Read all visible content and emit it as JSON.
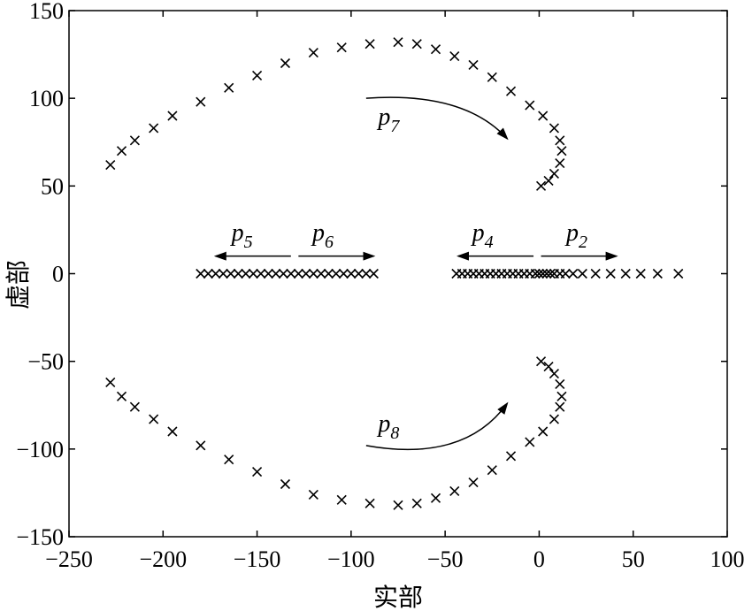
{
  "chart_data": {
    "type": "scatter",
    "title": "",
    "xlabel": "实部",
    "ylabel": "虚部",
    "xlim": [
      -250,
      100
    ],
    "ylim": [
      -150,
      150
    ],
    "xticks": [
      "−250",
      "−200",
      "−150",
      "−100",
      "−50",
      "0",
      "50",
      "100"
    ],
    "yticks": [
      "150",
      "100",
      "50",
      "0",
      "−50",
      "−100",
      "−150"
    ],
    "marker": "x",
    "series": [
      {
        "name": "p7",
        "points": [
          [
            -228,
            62
          ],
          [
            -222,
            70
          ],
          [
            -215,
            76
          ],
          [
            -205,
            83
          ],
          [
            -195,
            90
          ],
          [
            -180,
            98
          ],
          [
            -165,
            106
          ],
          [
            -150,
            113
          ],
          [
            -135,
            120
          ],
          [
            -120,
            126
          ],
          [
            -105,
            129
          ],
          [
            -90,
            131
          ],
          [
            -75,
            132
          ],
          [
            -65,
            131
          ],
          [
            -55,
            128
          ],
          [
            -45,
            124
          ],
          [
            -35,
            119
          ],
          [
            -25,
            112
          ],
          [
            -15,
            104
          ],
          [
            -5,
            96
          ],
          [
            2,
            90
          ],
          [
            8,
            83
          ],
          [
            11,
            76
          ],
          [
            12,
            70
          ],
          [
            11,
            63
          ],
          [
            8,
            57
          ],
          [
            5,
            53
          ],
          [
            1,
            50
          ]
        ]
      },
      {
        "name": "p8",
        "points": [
          [
            -228,
            -62
          ],
          [
            -222,
            -70
          ],
          [
            -215,
            -76
          ],
          [
            -205,
            -83
          ],
          [
            -195,
            -90
          ],
          [
            -180,
            -98
          ],
          [
            -165,
            -106
          ],
          [
            -150,
            -113
          ],
          [
            -135,
            -120
          ],
          [
            -120,
            -126
          ],
          [
            -105,
            -129
          ],
          [
            -90,
            -131
          ],
          [
            -75,
            -132
          ],
          [
            -65,
            -131
          ],
          [
            -55,
            -128
          ],
          [
            -45,
            -124
          ],
          [
            -35,
            -119
          ],
          [
            -25,
            -112
          ],
          [
            -15,
            -104
          ],
          [
            -5,
            -96
          ],
          [
            2,
            -90
          ],
          [
            8,
            -83
          ],
          [
            11,
            -76
          ],
          [
            12,
            -70
          ],
          [
            11,
            -63
          ],
          [
            8,
            -57
          ],
          [
            5,
            -53
          ],
          [
            1,
            -50
          ]
        ]
      },
      {
        "name": "p5/p6",
        "points": [
          [
            -180,
            0
          ],
          [
            -176,
            0
          ],
          [
            -172,
            0
          ],
          [
            -168,
            0
          ],
          [
            -164,
            0
          ],
          [
            -160,
            0
          ],
          [
            -156,
            0
          ],
          [
            -152,
            0
          ],
          [
            -148,
            0
          ],
          [
            -144,
            0
          ],
          [
            -140,
            0
          ],
          [
            -136,
            0
          ],
          [
            -132,
            0
          ],
          [
            -128,
            0
          ],
          [
            -124,
            0
          ],
          [
            -120,
            0
          ],
          [
            -116,
            0
          ],
          [
            -112,
            0
          ],
          [
            -108,
            0
          ],
          [
            -104,
            0
          ],
          [
            -100,
            0
          ],
          [
            -96,
            0
          ],
          [
            -92,
            0
          ],
          [
            -88,
            0
          ]
        ]
      },
      {
        "name": "p4/p2",
        "points": [
          [
            -44,
            0
          ],
          [
            -41,
            0
          ],
          [
            -38,
            0
          ],
          [
            -35,
            0
          ],
          [
            -32,
            0
          ],
          [
            -29,
            0
          ],
          [
            -26,
            0
          ],
          [
            -23,
            0
          ],
          [
            -20,
            0
          ],
          [
            -17,
            0
          ],
          [
            -14,
            0
          ],
          [
            -11,
            0
          ],
          [
            -8,
            0
          ],
          [
            -5,
            0
          ],
          [
            -2,
            0
          ],
          [
            0,
            0
          ],
          [
            2,
            0
          ],
          [
            4,
            0
          ],
          [
            6,
            0
          ],
          [
            8,
            0
          ],
          [
            11,
            0
          ],
          [
            14,
            0
          ],
          [
            18,
            0
          ],
          [
            23,
            0
          ],
          [
            30,
            0
          ],
          [
            38,
            0
          ],
          [
            46,
            0
          ],
          [
            54,
            0
          ],
          [
            63,
            0
          ],
          [
            74,
            0
          ]
        ]
      }
    ],
    "annotations": [
      {
        "text": "p",
        "sub": "7",
        "x": -80,
        "y": 85
      },
      {
        "text": "p",
        "sub": "8",
        "x": -80,
        "y": -90
      },
      {
        "text": "p",
        "sub": "5",
        "x": -158,
        "y": 19
      },
      {
        "text": "p",
        "sub": "6",
        "x": -115,
        "y": 19
      },
      {
        "text": "p",
        "sub": "4",
        "x": -30,
        "y": 19
      },
      {
        "text": "p",
        "sub": "2",
        "x": 20,
        "y": 19
      }
    ],
    "arrows": [
      {
        "name": "p7-arrow",
        "from": [
          -92,
          100
        ],
        "ctrl": [
          -40,
          104
        ],
        "to": [
          -17,
          77
        ]
      },
      {
        "name": "p8-arrow",
        "from": [
          -92,
          -98
        ],
        "ctrl": [
          -40,
          -108
        ],
        "to": [
          -17,
          -74
        ]
      },
      {
        "name": "p5-arrow",
        "from": [
          -132,
          10
        ],
        "to": [
          -172,
          10
        ]
      },
      {
        "name": "p6-arrow",
        "from": [
          -128,
          10
        ],
        "to": [
          -88,
          10
        ]
      },
      {
        "name": "p4-arrow",
        "from": [
          -3,
          10
        ],
        "to": [
          -43,
          10
        ]
      },
      {
        "name": "p2-arrow",
        "from": [
          1,
          10
        ],
        "to": [
          41,
          10
        ]
      }
    ],
    "grid": false,
    "legend": "none"
  }
}
